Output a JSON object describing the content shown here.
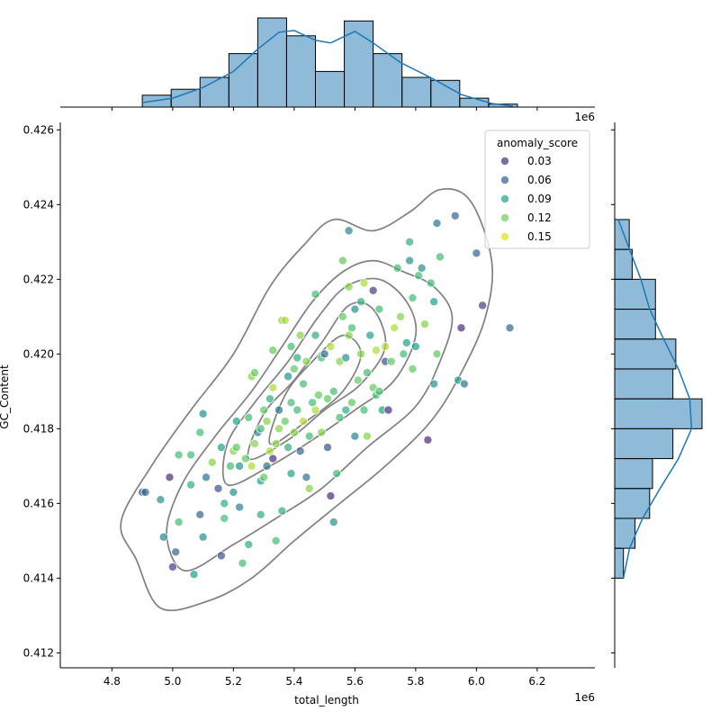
{
  "chart_data": {
    "type": "scatter",
    "xlabel": "total_length",
    "ylabel": "GC_Content",
    "x_offset_label": "1e6",
    "x_multiplier": 1000000,
    "xlim": [
      4.63,
      6.39
    ],
    "ylim": [
      0.4116,
      0.4262
    ],
    "xticks": [
      4.8,
      5.0,
      5.2,
      5.4,
      5.6,
      5.8,
      6.0,
      6.2
    ],
    "xtick_labels": [
      "4.8",
      "5.0",
      "5.2",
      "5.4",
      "5.6",
      "5.8",
      "6.0",
      "6.2"
    ],
    "yticks": [
      0.412,
      0.414,
      0.416,
      0.418,
      0.42,
      0.422,
      0.424,
      0.426
    ],
    "ytick_labels": [
      "0.412",
      "0.414",
      "0.416",
      "0.418",
      "0.420",
      "0.422",
      "0.424",
      "0.426"
    ],
    "grid": false,
    "legend": {
      "title": "anomaly_score",
      "placement": "top-right",
      "entries": [
        {
          "label": "0.03",
          "color": "#46327e"
        },
        {
          "label": "0.06",
          "color": "#365c8d"
        },
        {
          "label": "0.09",
          "color": "#1fa187"
        },
        {
          "label": "0.12",
          "color": "#6ece58"
        },
        {
          "label": "0.15",
          "color": "#dde318"
        }
      ]
    },
    "colormap": [
      "#440154",
      "#46327e",
      "#365c8d",
      "#277f8e",
      "#1fa187",
      "#4ac16d",
      "#a0da39",
      "#fde725"
    ],
    "score_range": [
      0.01,
      0.17
    ],
    "point_alpha": 0.7,
    "hist_color": "#1f77b4",
    "contour_color": "#808080",
    "x_hist": {
      "edges": [
        4.9,
        4.995,
        5.09,
        5.185,
        5.28,
        5.375,
        5.47,
        5.565,
        5.66,
        5.755,
        5.85,
        5.945,
        6.04,
        6.135
      ],
      "counts": [
        4,
        6,
        10,
        18,
        30,
        24,
        12,
        29,
        18,
        10,
        9,
        3,
        1
      ]
    },
    "y_hist": {
      "edges": [
        0.414,
        0.4148,
        0.4156,
        0.4164,
        0.4172,
        0.418,
        0.4188,
        0.4196,
        0.4204,
        0.4212,
        0.422,
        0.4228,
        0.4236
      ],
      "counts": [
        3,
        7,
        12,
        13,
        20,
        30,
        20,
        21,
        14,
        14,
        6,
        5
      ]
    },
    "x_kde": [
      [
        4.9,
        0.05
      ],
      [
        5.0,
        0.1
      ],
      [
        5.1,
        0.22
      ],
      [
        5.2,
        0.4
      ],
      [
        5.28,
        0.65
      ],
      [
        5.35,
        0.84
      ],
      [
        5.4,
        0.86
      ],
      [
        5.47,
        0.75
      ],
      [
        5.52,
        0.72
      ],
      [
        5.6,
        0.85
      ],
      [
        5.66,
        0.72
      ],
      [
        5.75,
        0.5
      ],
      [
        5.85,
        0.33
      ],
      [
        5.95,
        0.14
      ],
      [
        6.05,
        0.04
      ],
      [
        6.12,
        0.01
      ]
    ],
    "y_kde": [
      [
        0.414,
        0.1
      ],
      [
        0.4148,
        0.17
      ],
      [
        0.4156,
        0.32
      ],
      [
        0.4164,
        0.52
      ],
      [
        0.4172,
        0.73
      ],
      [
        0.418,
        0.88
      ],
      [
        0.4188,
        0.86
      ],
      [
        0.4196,
        0.73
      ],
      [
        0.4204,
        0.56
      ],
      [
        0.4212,
        0.4
      ],
      [
        0.422,
        0.3
      ],
      [
        0.4228,
        0.17
      ],
      [
        0.4236,
        0.04
      ]
    ],
    "contours": [
      [
        [
          4.96,
          0.4132
        ],
        [
          5.12,
          0.4134
        ],
        [
          5.26,
          0.414
        ],
        [
          5.4,
          0.415
        ],
        [
          5.55,
          0.416
        ],
        [
          5.7,
          0.417
        ],
        [
          5.85,
          0.4182
        ],
        [
          5.95,
          0.4195
        ],
        [
          6.03,
          0.421
        ],
        [
          6.05,
          0.4225
        ],
        [
          5.98,
          0.4241
        ],
        [
          5.88,
          0.4244
        ],
        [
          5.78,
          0.4238
        ],
        [
          5.66,
          0.4233
        ],
        [
          5.53,
          0.4236
        ],
        [
          5.43,
          0.4229
        ],
        [
          5.32,
          0.4218
        ],
        [
          5.2,
          0.42
        ],
        [
          5.06,
          0.4185
        ],
        [
          4.93,
          0.417
        ],
        [
          4.83,
          0.4155
        ],
        [
          4.88,
          0.4145
        ],
        [
          4.96,
          0.4132
        ]
      ],
      [
        [
          5.04,
          0.4142
        ],
        [
          5.2,
          0.4149
        ],
        [
          5.34,
          0.4156
        ],
        [
          5.49,
          0.4164
        ],
        [
          5.64,
          0.4175
        ],
        [
          5.8,
          0.4186
        ],
        [
          5.88,
          0.4198
        ],
        [
          5.92,
          0.421
        ],
        [
          5.86,
          0.4218
        ],
        [
          5.76,
          0.4222
        ],
        [
          5.66,
          0.4225
        ],
        [
          5.56,
          0.4222
        ],
        [
          5.46,
          0.4214
        ],
        [
          5.36,
          0.4202
        ],
        [
          5.26,
          0.419
        ],
        [
          5.14,
          0.4178
        ],
        [
          5.03,
          0.4165
        ],
        [
          4.98,
          0.4152
        ],
        [
          5.04,
          0.4142
        ]
      ],
      [
        [
          5.18,
          0.4165
        ],
        [
          5.32,
          0.417
        ],
        [
          5.46,
          0.4177
        ],
        [
          5.6,
          0.4185
        ],
        [
          5.73,
          0.4193
        ],
        [
          5.8,
          0.4205
        ],
        [
          5.77,
          0.4214
        ],
        [
          5.68,
          0.422
        ],
        [
          5.57,
          0.4218
        ],
        [
          5.48,
          0.421
        ],
        [
          5.38,
          0.4198
        ],
        [
          5.27,
          0.4187
        ],
        [
          5.18,
          0.4176
        ],
        [
          5.18,
          0.4165
        ]
      ],
      [
        [
          5.25,
          0.4172
        ],
        [
          5.38,
          0.4177
        ],
        [
          5.5,
          0.4185
        ],
        [
          5.62,
          0.4192
        ],
        [
          5.7,
          0.4202
        ],
        [
          5.66,
          0.4212
        ],
        [
          5.58,
          0.4213
        ],
        [
          5.49,
          0.4203
        ],
        [
          5.4,
          0.4193
        ],
        [
          5.3,
          0.4184
        ],
        [
          5.25,
          0.4172
        ]
      ],
      [
        [
          5.32,
          0.4176
        ],
        [
          5.44,
          0.4182
        ],
        [
          5.56,
          0.419
        ],
        [
          5.62,
          0.42
        ],
        [
          5.56,
          0.4205
        ],
        [
          5.46,
          0.4198
        ],
        [
          5.37,
          0.4189
        ],
        [
          5.32,
          0.4176
        ]
      ]
    ],
    "points": [
      [
        4.9,
        0.4163,
        0.05
      ],
      [
        4.91,
        0.4163,
        0.06
      ],
      [
        4.96,
        0.4161,
        0.09
      ],
      [
        4.99,
        0.4167,
        0.03
      ],
      [
        5.0,
        0.4143,
        0.04
      ],
      [
        5.01,
        0.4147,
        0.06
      ],
      [
        4.97,
        0.4151,
        0.08
      ],
      [
        5.02,
        0.4173,
        0.12
      ],
      [
        5.06,
        0.4173,
        0.12
      ],
      [
        5.07,
        0.4141,
        0.1
      ],
      [
        5.02,
        0.4155,
        0.12
      ],
      [
        5.09,
        0.4157,
        0.06
      ],
      [
        5.1,
        0.4151,
        0.09
      ],
      [
        5.06,
        0.4165,
        0.11
      ],
      [
        5.11,
        0.4167,
        0.07
      ],
      [
        5.1,
        0.4184,
        0.09
      ],
      [
        5.09,
        0.4179,
        0.12
      ],
      [
        5.13,
        0.4171,
        0.14
      ],
      [
        5.15,
        0.4164,
        0.05
      ],
      [
        5.16,
        0.4175,
        0.1
      ],
      [
        5.17,
        0.416,
        0.11
      ],
      [
        5.16,
        0.4146,
        0.05
      ],
      [
        5.17,
        0.4156,
        0.12
      ],
      [
        5.19,
        0.417,
        0.12
      ],
      [
        5.2,
        0.4163,
        0.09
      ],
      [
        5.2,
        0.4174,
        0.14
      ],
      [
        5.21,
        0.4182,
        0.1
      ],
      [
        5.21,
        0.4175,
        0.13
      ],
      [
        5.22,
        0.4159,
        0.08
      ],
      [
        5.22,
        0.417,
        0.09
      ],
      [
        5.23,
        0.4144,
        0.12
      ],
      [
        5.24,
        0.4172,
        0.13
      ],
      [
        5.25,
        0.4149,
        0.11
      ],
      [
        5.25,
        0.4183,
        0.12
      ],
      [
        5.26,
        0.4194,
        0.14
      ],
      [
        5.26,
        0.417,
        0.15
      ],
      [
        5.27,
        0.4195,
        0.13
      ],
      [
        5.27,
        0.4176,
        0.14
      ],
      [
        5.28,
        0.4179,
        0.08
      ],
      [
        5.29,
        0.4157,
        0.11
      ],
      [
        5.29,
        0.4166,
        0.1
      ],
      [
        5.29,
        0.418,
        0.12
      ],
      [
        5.3,
        0.4185,
        0.13
      ],
      [
        5.3,
        0.4167,
        0.13
      ],
      [
        5.31,
        0.417,
        0.07
      ],
      [
        5.31,
        0.4182,
        0.14
      ],
      [
        5.32,
        0.4174,
        0.15
      ],
      [
        5.32,
        0.4188,
        0.11
      ],
      [
        5.33,
        0.4172,
        0.03
      ],
      [
        5.33,
        0.4191,
        0.15
      ],
      [
        5.34,
        0.415,
        0.12
      ],
      [
        5.34,
        0.4176,
        0.14
      ],
      [
        5.35,
        0.418,
        0.14
      ],
      [
        5.35,
        0.4185,
        0.07
      ],
      [
        5.36,
        0.4209,
        0.14
      ],
      [
        5.36,
        0.4158,
        0.11
      ],
      [
        5.37,
        0.4209,
        0.15
      ],
      [
        5.37,
        0.4182,
        0.13
      ],
      [
        5.38,
        0.4194,
        0.09
      ],
      [
        5.38,
        0.4175,
        0.11
      ],
      [
        5.39,
        0.4187,
        0.12
      ],
      [
        5.39,
        0.4168,
        0.1
      ],
      [
        5.4,
        0.4196,
        0.13
      ],
      [
        5.4,
        0.4179,
        0.14
      ],
      [
        5.41,
        0.4185,
        0.12
      ],
      [
        5.41,
        0.4199,
        0.11
      ],
      [
        5.42,
        0.4174,
        0.06
      ],
      [
        5.42,
        0.4205,
        0.14
      ],
      [
        5.43,
        0.4182,
        0.15
      ],
      [
        5.43,
        0.4192,
        0.12
      ],
      [
        5.44,
        0.4167,
        0.07
      ],
      [
        5.44,
        0.4198,
        0.14
      ],
      [
        5.45,
        0.4164,
        0.14
      ],
      [
        5.45,
        0.4178,
        0.12
      ],
      [
        5.46,
        0.4187,
        0.12
      ],
      [
        5.47,
        0.4205,
        0.11
      ],
      [
        5.47,
        0.4185,
        0.15
      ],
      [
        5.48,
        0.4189,
        0.13
      ],
      [
        5.49,
        0.4179,
        0.14
      ],
      [
        5.49,
        0.4199,
        0.12
      ],
      [
        5.5,
        0.42,
        0.06
      ],
      [
        5.51,
        0.4188,
        0.13
      ],
      [
        5.51,
        0.4175,
        0.05
      ],
      [
        5.52,
        0.4162,
        0.03
      ],
      [
        5.52,
        0.4202,
        0.15
      ],
      [
        5.53,
        0.4155,
        0.09
      ],
      [
        5.53,
        0.419,
        0.12
      ],
      [
        5.54,
        0.4168,
        0.12
      ],
      [
        5.55,
        0.4198,
        0.14
      ],
      [
        5.55,
        0.4183,
        0.12
      ],
      [
        5.56,
        0.421,
        0.13
      ],
      [
        5.56,
        0.4225,
        0.13
      ],
      [
        5.57,
        0.4185,
        0.11
      ],
      [
        5.57,
        0.4199,
        0.09
      ],
      [
        5.58,
        0.4233,
        0.08
      ],
      [
        5.58,
        0.4218,
        0.14
      ],
      [
        5.59,
        0.4207,
        0.12
      ],
      [
        5.59,
        0.4187,
        0.13
      ],
      [
        5.6,
        0.4212,
        0.09
      ],
      [
        5.6,
        0.4178,
        0.08
      ],
      [
        5.61,
        0.4193,
        0.13
      ],
      [
        5.62,
        0.4214,
        0.11
      ],
      [
        5.62,
        0.42,
        0.14
      ],
      [
        5.63,
        0.4185,
        0.12
      ],
      [
        5.63,
        0.4219,
        0.15
      ],
      [
        5.64,
        0.4195,
        0.12
      ],
      [
        5.64,
        0.4178,
        0.14
      ],
      [
        5.65,
        0.4205,
        0.1
      ],
      [
        5.66,
        0.4217,
        0.04
      ],
      [
        5.66,
        0.4191,
        0.13
      ],
      [
        5.67,
        0.4201,
        0.15
      ],
      [
        5.67,
        0.4189,
        0.12
      ],
      [
        5.68,
        0.4212,
        0.12
      ],
      [
        5.69,
        0.4185,
        0.1
      ],
      [
        5.7,
        0.4202,
        0.15
      ],
      [
        5.7,
        0.4198,
        0.05
      ],
      [
        5.71,
        0.4185,
        0.03
      ],
      [
        5.72,
        0.4198,
        0.13
      ],
      [
        5.73,
        0.4207,
        0.15
      ],
      [
        5.74,
        0.4223,
        0.12
      ],
      [
        5.75,
        0.421,
        0.14
      ],
      [
        5.76,
        0.42,
        0.12
      ],
      [
        5.77,
        0.4203,
        0.1
      ],
      [
        5.78,
        0.423,
        0.11
      ],
      [
        5.78,
        0.4225,
        0.09
      ],
      [
        5.79,
        0.4196,
        0.13
      ],
      [
        5.79,
        0.4215,
        0.12
      ],
      [
        5.8,
        0.4202,
        0.1
      ],
      [
        5.81,
        0.4221,
        0.12
      ],
      [
        5.82,
        0.4223,
        0.09
      ],
      [
        5.83,
        0.4208,
        0.14
      ],
      [
        5.84,
        0.4177,
        0.03
      ],
      [
        5.85,
        0.4219,
        0.12
      ],
      [
        5.86,
        0.4214,
        0.1
      ],
      [
        5.86,
        0.4192,
        0.09
      ],
      [
        5.87,
        0.4235,
        0.07
      ],
      [
        5.87,
        0.42,
        0.13
      ],
      [
        5.88,
        0.4226,
        0.12
      ],
      [
        5.93,
        0.4237,
        0.06
      ],
      [
        5.94,
        0.4193,
        0.1
      ],
      [
        5.95,
        0.4207,
        0.03
      ],
      [
        5.96,
        0.4192,
        0.07
      ],
      [
        6.0,
        0.4227,
        0.06
      ],
      [
        6.02,
        0.4213,
        0.04
      ],
      [
        6.11,
        0.4207,
        0.06
      ],
      [
        5.47,
        0.4216,
        0.12
      ],
      [
        5.39,
        0.4202,
        0.12
      ],
      [
        5.33,
        0.4201,
        0.13
      ],
      [
        5.58,
        0.4205,
        0.14
      ],
      [
        5.68,
        0.419,
        0.12
      ]
    ]
  }
}
